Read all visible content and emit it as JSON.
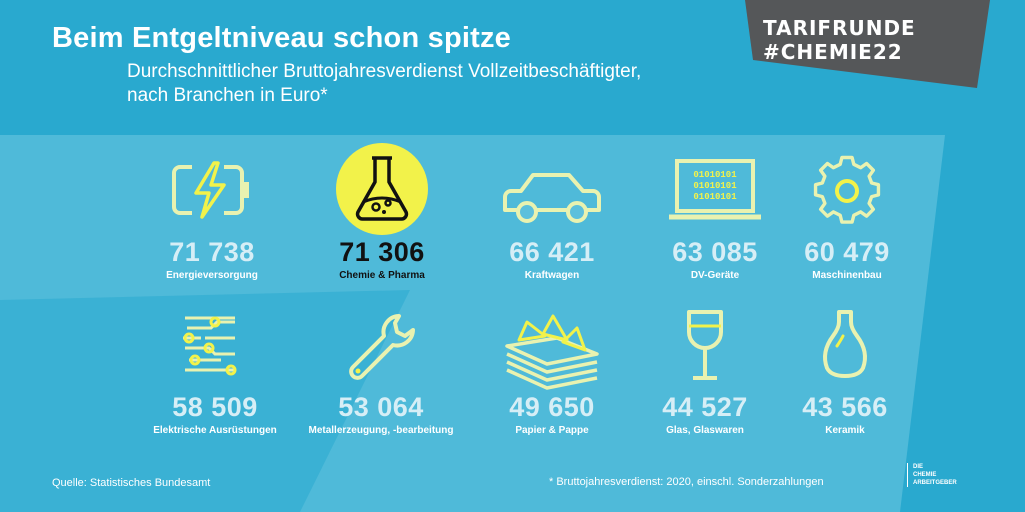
{
  "colors": {
    "background": "#29a9cf",
    "panel": "#5cc0dc",
    "icon": "#e9f2b0",
    "accent": "#f2f24a",
    "badge": "#555759"
  },
  "header": {
    "title": "Beim Entgeltniveau schon spitze",
    "subtitle_line1": "Durchschnittlicher Bruttojahresverdienst Vollzeitbeschäftigter,",
    "subtitle_line2": "nach Branchen in Euro*"
  },
  "badge": {
    "line1": "TARIFRUNDE",
    "line2": "#CHEMIE22"
  },
  "items": [
    {
      "value": "71 738",
      "label": "Energieversorgung",
      "icon": "battery-charging-icon"
    },
    {
      "value": "71 306",
      "label": "Chemie & Pharma",
      "icon": "flask-icon"
    },
    {
      "value": "66 421",
      "label": "Kraftwagen",
      "icon": "car-icon"
    },
    {
      "value": "63 085",
      "label": "DV-Geräte",
      "icon": "laptop-icon",
      "screen_text": [
        "01010101",
        "01010101",
        "01010101"
      ]
    },
    {
      "value": "60 479",
      "label": "Maschinenbau",
      "icon": "gear-icon"
    },
    {
      "value": "58 509",
      "label": "Elektrische Ausrüstungen",
      "icon": "circuit-icon"
    },
    {
      "value": "53 064",
      "label": "Metallerzeugung,  -bearbeitung",
      "icon": "wrench-icon"
    },
    {
      "value": "49 650",
      "label": "Papier & Pappe",
      "icon": "paper-stack-icon"
    },
    {
      "value": "44 527",
      "label": "Glas, Glaswaren",
      "icon": "wine-glass-icon"
    },
    {
      "value": "43 566",
      "label": "Keramik",
      "icon": "vase-icon"
    }
  ],
  "footer": {
    "source": "Quelle: Statistisches Bundesamt",
    "note": "* Bruttojahresverdienst: 2020, einschl. Sonderzahlungen"
  },
  "logo": {
    "line1": "DIE",
    "line2": "CHEMIE",
    "line3": "ARBEITGEBER"
  }
}
